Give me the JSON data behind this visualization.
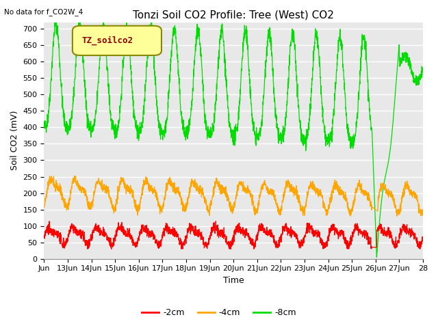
{
  "title": "Tonzi Soil CO2 Profile: Tree (West) CO2",
  "no_data_text": "No data for f_CO2W_4",
  "ylabel": "Soil CO2 (mV)",
  "xlabel": "Time",
  "legend_label": "TZ_soilco2",
  "series_labels": [
    "-2cm",
    "-4cm",
    "-8cm"
  ],
  "series_colors": [
    "#ff0000",
    "#ffa500",
    "#00dd00"
  ],
  "ylim": [
    0,
    720
  ],
  "yticks": [
    0,
    50,
    100,
    150,
    200,
    250,
    300,
    350,
    400,
    450,
    500,
    550,
    600,
    650,
    700
  ],
  "xstart": 12,
  "xend": 28,
  "xtick_labels": [
    "Jun",
    "13Jun",
    "14Jun",
    "15Jun",
    "16Jun",
    "17Jun",
    "18Jun",
    "19Jun",
    "20Jun",
    "21Jun",
    "22Jun",
    "23Jun",
    "24Jun",
    "25Jun",
    "26Jun",
    "27Jun",
    "28"
  ],
  "fig_bg_color": "#ffffff",
  "plot_bg_color": "#e8e8e8",
  "grid_color": "#ffffff",
  "legend_box_color": "#ffff99",
  "legend_box_edgecolor": "#888800",
  "title_fontsize": 11,
  "axis_fontsize": 8,
  "label_fontsize": 9
}
